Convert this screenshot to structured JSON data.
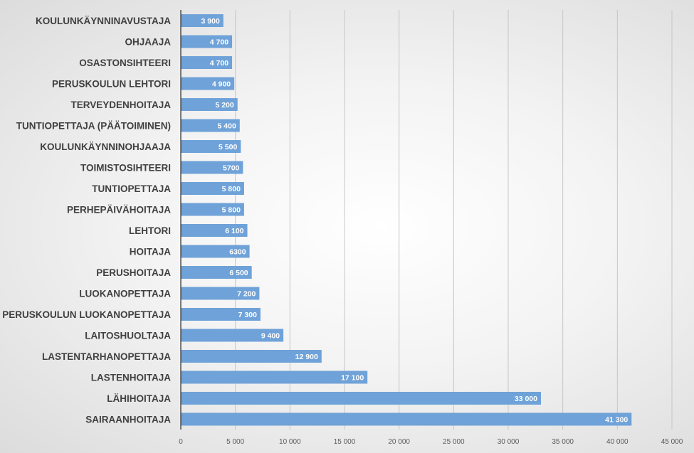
{
  "chart_data": {
    "type": "bar",
    "orientation": "horizontal",
    "title": "",
    "xlabel": "",
    "ylabel": "",
    "xlim": [
      0,
      45000
    ],
    "x_ticks": [
      0,
      5000,
      10000,
      15000,
      20000,
      25000,
      30000,
      35000,
      40000,
      45000
    ],
    "x_tick_labels": [
      "0",
      "5 000",
      "10 000",
      "15 000",
      "20 000",
      "25 000",
      "30 000",
      "35 000",
      "40 000",
      "45 000"
    ],
    "grid": true,
    "legend": "none",
    "bar_color": "#6fa2d8",
    "categories": [
      "KOULUNKÄYNNINAVUSTAJA",
      "OHJAAJA",
      "OSASTONSIHTEERI",
      "PERUSKOULUN LEHTORI",
      "TERVEYDENHOITAJA",
      "TUNTIOPETTAJA (PÄÄTOIMINEN)",
      "KOULUNKÄYNNINOHJAAJA",
      "TOIMISTOSIHTEERI",
      "TUNTIOPETTAJA",
      "PERHEPÄIVÄHOITAJA",
      "LEHTORI",
      "HOITAJA",
      "PERUSHOITAJA",
      "LUOKANOPETTAJA",
      "PERUSKOULUN LUOKANOPETTAJA",
      "LAITOSHUOLTAJA",
      "LASTENTARHANOPETTAJA",
      "LASTENHOITAJA",
      "LÄHIHOITAJA",
      "SAIRAANHOITAJA"
    ],
    "values": [
      3900,
      4700,
      4700,
      4900,
      5200,
      5400,
      5500,
      5700,
      5800,
      5800,
      6100,
      6300,
      6500,
      7200,
      7300,
      9400,
      12900,
      17100,
      33000,
      41300
    ],
    "value_labels": [
      "3 900",
      "4 700",
      "4 700",
      "4 900",
      "5 200",
      "5 400",
      "5 500",
      "5700",
      "5 800",
      "5 800",
      "6 100",
      "6300",
      "6 500",
      "7 200",
      "7 300",
      "9 400",
      "12 900",
      "17 100",
      "33 000",
      "41 300"
    ]
  }
}
